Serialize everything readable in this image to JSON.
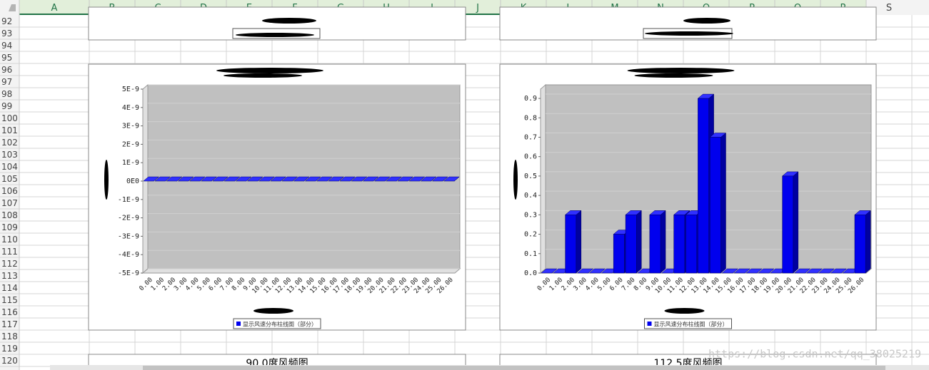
{
  "spreadsheet": {
    "columns": [
      "A",
      "B",
      "C",
      "D",
      "E",
      "F",
      "G",
      "H",
      "I",
      "J",
      "K",
      "L",
      "M",
      "N",
      "O",
      "P",
      "Q",
      "R",
      "S"
    ],
    "rows": [
      92,
      93,
      94,
      95,
      96,
      97,
      98,
      99,
      100,
      101,
      102,
      103,
      104,
      105,
      106,
      107,
      108,
      109,
      110,
      111,
      112,
      113,
      114,
      115,
      116,
      117,
      118,
      119,
      120
    ]
  },
  "chart_data": [
    {
      "type": "bar",
      "legend": "显示风速分布柱线图（部分）",
      "color": "#0000ee",
      "categories": [
        "0.00",
        "1.00",
        "2.00",
        "3.00",
        "4.00",
        "5.00",
        "6.00",
        "7.00",
        "8.00",
        "9.00",
        "10.00",
        "11.00",
        "12.00",
        "13.00",
        "14.00",
        "15.00",
        "16.00",
        "17.00",
        "18.00",
        "19.00",
        "20.00",
        "21.00",
        "22.00",
        "23.00",
        "24.00",
        "25.00",
        "26.00"
      ],
      "values": [
        0,
        0,
        0,
        0,
        0,
        0,
        0,
        0,
        0,
        0,
        0,
        0,
        0,
        0,
        0,
        0,
        0,
        0,
        0,
        0,
        0,
        0,
        0,
        0,
        0,
        0,
        0
      ],
      "ylim": [
        -5e-09,
        5e-09
      ],
      "yticks": [
        {
          "value": 5e-09,
          "label": "5E-9"
        },
        {
          "value": 4e-09,
          "label": "4E-9"
        },
        {
          "value": 3e-09,
          "label": "3E-9"
        },
        {
          "value": 2e-09,
          "label": "2E-9"
        },
        {
          "value": 1e-09,
          "label": "1E-9"
        },
        {
          "value": 0,
          "label": "0E0"
        },
        {
          "value": -1e-09,
          "label": "-1E-9"
        },
        {
          "value": -2e-09,
          "label": "-2E-9"
        },
        {
          "value": -3e-09,
          "label": "-3E-9"
        },
        {
          "value": -4e-09,
          "label": "-4E-9"
        },
        {
          "value": -5e-09,
          "label": "-5E-9"
        }
      ]
    },
    {
      "type": "bar",
      "legend": "显示风速分布柱线图（部分）",
      "color": "#0000ee",
      "categories": [
        "0.00",
        "1.00",
        "2.00",
        "3.00",
        "4.00",
        "5.00",
        "6.00",
        "7.00",
        "8.00",
        "9.00",
        "10.00",
        "11.00",
        "12.00",
        "13.00",
        "14.00",
        "15.00",
        "16.00",
        "17.00",
        "18.00",
        "19.00",
        "20.00",
        "21.00",
        "22.00",
        "23.00",
        "24.00",
        "25.00",
        "26.00"
      ],
      "values": [
        0,
        0,
        0.3,
        0,
        0,
        0,
        0.2,
        0.3,
        0,
        0.3,
        0,
        0.3,
        0.3,
        0.9,
        0.7,
        0,
        0,
        0,
        0,
        0,
        0.5,
        0,
        0,
        0,
        0,
        0,
        0.3
      ],
      "ylim": [
        0,
        0.97
      ],
      "yticks": [
        0.9,
        0.8,
        0.7,
        0.6,
        0.5,
        0.4,
        0.3,
        0.2,
        0.1,
        {
          "value": 0,
          "label": "0.0"
        }
      ]
    }
  ],
  "below_titles": [
    "90.0度风频图",
    "112.5度风频图"
  ],
  "watermark": "https://blog.csdn.net/qq_38025219"
}
